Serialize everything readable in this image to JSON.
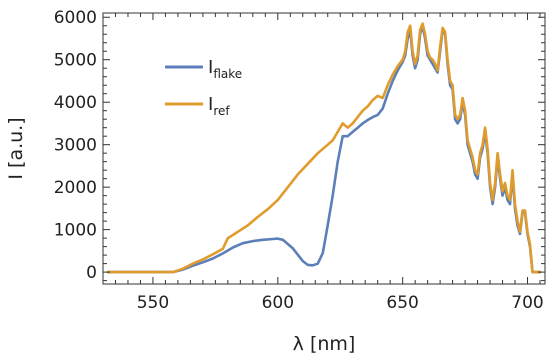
{
  "chart_data": {
    "type": "line",
    "xlabel": "λ [nm]",
    "ylabel": "I [a.u.]",
    "xlim": [
      530,
      707
    ],
    "ylim": [
      -280,
      6100
    ],
    "x_ticks": [
      550,
      600,
      650,
      700
    ],
    "y_ticks": [
      0,
      1000,
      2000,
      3000,
      4000,
      5000,
      6000
    ],
    "grid": false,
    "frame": true,
    "legend": {
      "position": "top-left",
      "entries": [
        {
          "main": "I",
          "sub": "flake",
          "color": "#5b7fb8"
        },
        {
          "main": "I",
          "sub": "ref",
          "color": "#e09b2d"
        }
      ]
    },
    "series": [
      {
        "label_main": "I",
        "label_sub": "flake",
        "color": "#5b7fb8",
        "x": [
          532,
          540,
          550,
          558,
          562,
          566,
          570,
          574,
          578,
          582,
          586,
          590,
          594,
          598,
          600,
          602,
          606,
          610,
          612,
          614,
          616,
          618,
          620,
          622,
          624,
          626,
          628,
          630,
          632,
          634,
          636,
          638,
          640,
          642,
          644,
          646,
          648,
          650,
          651,
          652,
          653,
          654,
          655,
          656,
          657,
          658,
          659,
          660,
          661,
          662,
          663,
          664,
          665,
          666,
          667,
          668,
          669,
          670,
          671,
          672,
          673,
          674,
          675,
          676,
          677,
          678,
          679,
          680,
          681,
          682,
          683,
          684,
          685,
          686,
          687,
          688,
          689,
          690,
          691,
          692,
          693,
          694,
          695,
          696,
          697,
          698,
          699,
          700,
          701,
          702,
          705
        ],
        "y": [
          0,
          0,
          0,
          0,
          60,
          150,
          230,
          320,
          440,
          580,
          680,
          730,
          760,
          780,
          790,
          760,
          560,
          260,
          170,
          160,
          200,
          450,
          1100,
          1800,
          2600,
          3200,
          3200,
          3300,
          3400,
          3500,
          3580,
          3650,
          3700,
          3850,
          4200,
          4500,
          4750,
          4950,
          5100,
          5500,
          5700,
          5100,
          4800,
          5000,
          5600,
          5800,
          5500,
          5100,
          5000,
          4900,
          4800,
          4700,
          5200,
          5700,
          5600,
          4900,
          4400,
          4300,
          3600,
          3500,
          3600,
          4000,
          3700,
          3000,
          2800,
          2600,
          2300,
          2200,
          2700,
          2900,
          3300,
          2800,
          2000,
          1600,
          2000,
          2700,
          2200,
          1800,
          2000,
          1700,
          1600,
          2300,
          1500,
          1100,
          900,
          1400,
          1400,
          900,
          600,
          0,
          0
        ]
      },
      {
        "label_main": "I",
        "label_sub": "ref",
        "color": "#e09b2d",
        "x": [
          532,
          540,
          550,
          558,
          562,
          566,
          570,
          574,
          578,
          580,
          584,
          588,
          592,
          596,
          600,
          604,
          608,
          612,
          616,
          620,
          622,
          624,
          626,
          628,
          630,
          632,
          634,
          636,
          638,
          640,
          642,
          644,
          646,
          648,
          650,
          651,
          652,
          653,
          654,
          655,
          656,
          657,
          658,
          659,
          660,
          661,
          662,
          663,
          664,
          665,
          666,
          667,
          668,
          669,
          670,
          671,
          672,
          673,
          674,
          675,
          676,
          677,
          678,
          679,
          680,
          681,
          682,
          683,
          684,
          685,
          686,
          687,
          688,
          689,
          690,
          691,
          692,
          693,
          694,
          695,
          696,
          697,
          698,
          699,
          700,
          701,
          702,
          705
        ],
        "y": [
          0,
          0,
          0,
          0,
          80,
          200,
          300,
          420,
          550,
          800,
          950,
          1100,
          1300,
          1480,
          1700,
          2000,
          2300,
          2550,
          2800,
          3000,
          3100,
          3300,
          3500,
          3400,
          3500,
          3650,
          3800,
          3900,
          4050,
          4150,
          4100,
          4400,
          4650,
          4850,
          5000,
          5200,
          5650,
          5800,
          5200,
          4900,
          5100,
          5700,
          5850,
          5600,
          5200,
          5050,
          5000,
          4900,
          4750,
          5300,
          5750,
          5650,
          5000,
          4500,
          4400,
          3700,
          3600,
          3700,
          4100,
          3800,
          3100,
          2900,
          2700,
          2400,
          2300,
          2800,
          3000,
          3400,
          2900,
          2100,
          1700,
          2100,
          2800,
          2300,
          1900,
          2100,
          1800,
          1700,
          2400,
          1600,
          1200,
          950,
          1450,
          1450,
          950,
          650,
          0,
          0
        ]
      }
    ]
  }
}
